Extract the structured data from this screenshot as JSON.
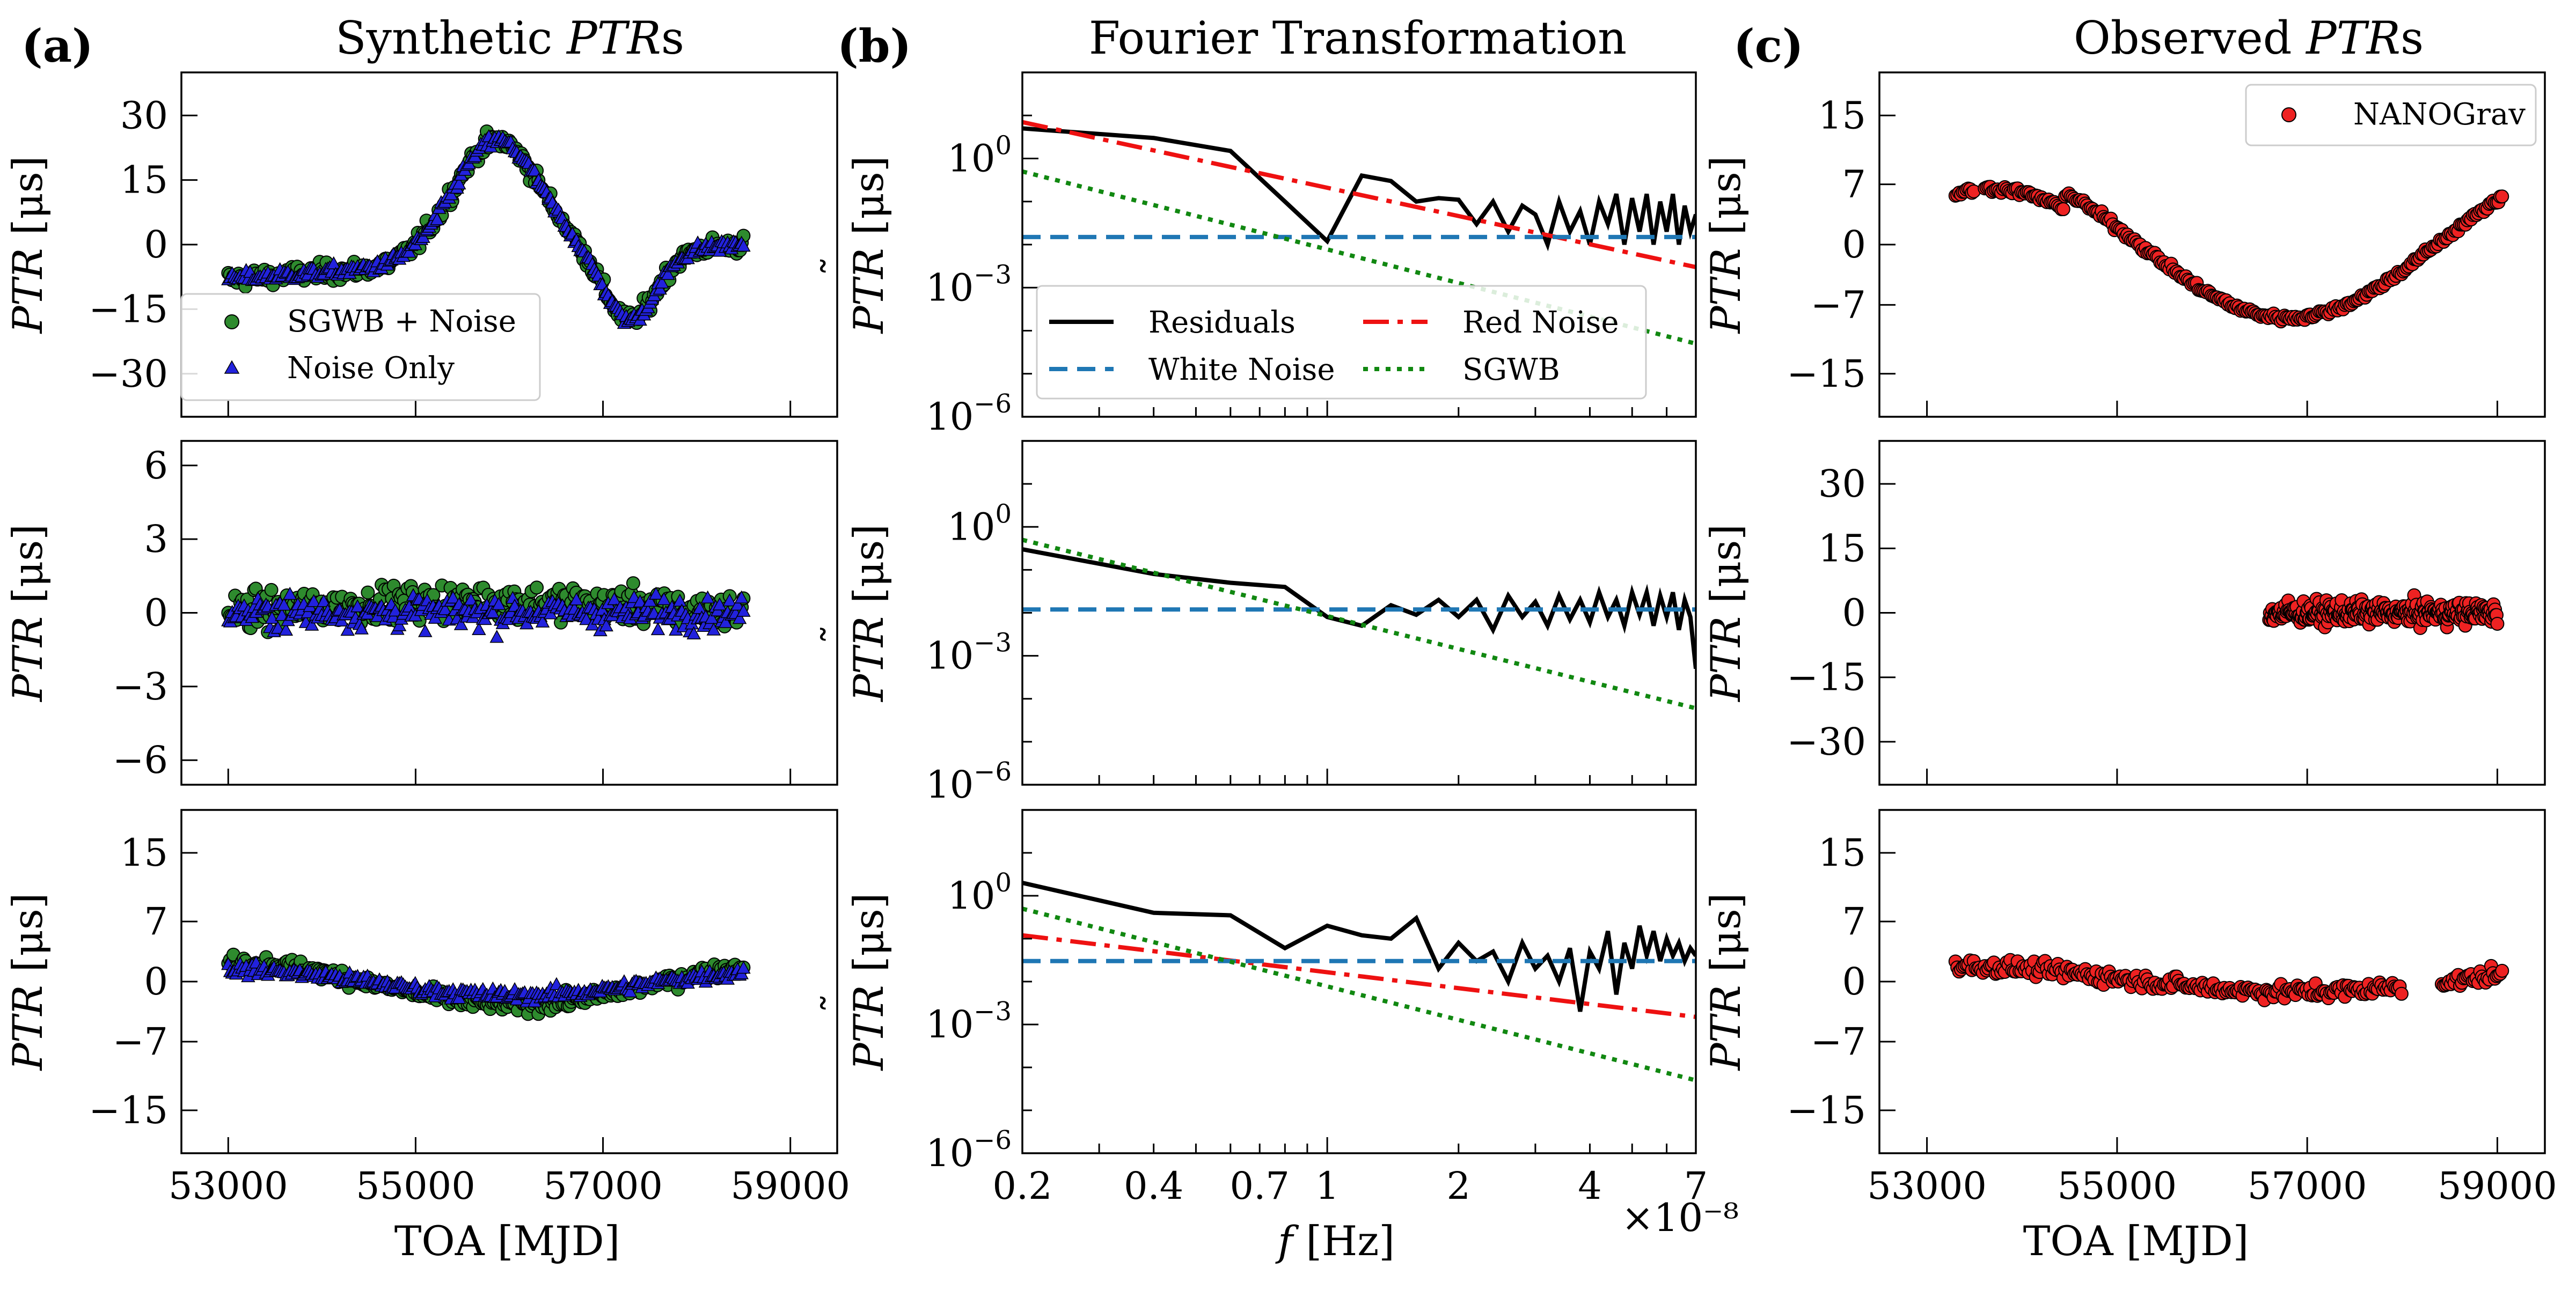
{
  "columns": [
    {
      "letter": "(a)",
      "title_pre": "Synthetic ",
      "title_math": "PTR",
      "title_post": "s"
    },
    {
      "letter": "(b)",
      "title_pre": "Fourier Transformation",
      "title_math": "",
      "title_post": ""
    },
    {
      "letter": "(c)",
      "title_pre": "Observed ",
      "title_math": "PTR",
      "title_post": "s"
    }
  ],
  "ylabels": {
    "time_math": "PTR",
    "time_unit": " [μs]",
    "freq_math": "PTR",
    "freq_unit": " [μs]"
  },
  "xlabels": {
    "toa": "TOA [MJD]",
    "freq_math": "f",
    "freq_unit": " [Hz]",
    "freq_offset": "×10⁻⁸"
  },
  "legends": {
    "synthetic": [
      "SGWB  +  Noise",
      "Noise Only"
    ],
    "fourier": [
      "Residuals",
      "Red Noise",
      "White Noise",
      "SGWB"
    ],
    "observed": [
      "NANOGrav"
    ]
  },
  "colors": {
    "sgwb_noise": "#2e8b2e",
    "noise_only": "#2222dd",
    "residuals": "#000000",
    "white_noise": "#1f77b4",
    "red_noise": "#ee1111",
    "sgwb": "#118811",
    "nanograv": "#ee2222"
  },
  "chart_data": [
    {
      "id": "a1",
      "type": "scatter",
      "title": "Synthetic PTRs",
      "xlim": [
        52500,
        59500
      ],
      "ylim": [
        -40,
        40
      ],
      "xticks": [
        53000,
        55000,
        57000,
        59000
      ],
      "yticks": [
        30,
        15,
        0,
        -15,
        -30
      ],
      "xlabel": "",
      "ylabel": "PTR [μs]",
      "legend_placement": "lower-left",
      "series": [
        {
          "name": "SGWB + Noise",
          "marker": "circle",
          "curve": "gwb",
          "amp": 1,
          "noise": 1.5,
          "x_range": [
            53000,
            58500
          ]
        },
        {
          "name": "Noise Only",
          "marker": "triangle",
          "curve": "gwb",
          "amp": 1,
          "noise": 1.0,
          "x_range": [
            53000,
            58500
          ]
        }
      ]
    },
    {
      "id": "a2",
      "type": "scatter",
      "xlim": [
        52500,
        59500
      ],
      "ylim": [
        -7,
        7
      ],
      "xticks": [
        53000,
        55000,
        57000,
        59000
      ],
      "yticks": [
        6,
        3,
        0,
        -3,
        -6
      ],
      "xlabel": "",
      "ylabel": "PTR [μs]",
      "series": [
        {
          "name": "SGWB + Noise",
          "marker": "circle",
          "curve": "bump",
          "amp": 0.6,
          "noise": 0.5,
          "x_range": [
            53000,
            58500
          ]
        },
        {
          "name": "Noise Only",
          "marker": "triangle",
          "curve": "flat",
          "amp": 0,
          "noise": 0.45,
          "x_range": [
            53000,
            58500
          ]
        }
      ]
    },
    {
      "id": "a3",
      "type": "scatter",
      "xlim": [
        52500,
        59500
      ],
      "ylim": [
        -20,
        20
      ],
      "xticks": [
        53000,
        55000,
        57000,
        59000
      ],
      "yticks": [
        15,
        7,
        0,
        -7,
        -15
      ],
      "xlabel": "TOA [MJD]",
      "ylabel": "PTR [μs]",
      "series": [
        {
          "name": "SGWB + Noise",
          "marker": "circle",
          "curve": "wave3",
          "amp": 1,
          "noise": 0.6,
          "x_range": [
            53000,
            58500
          ]
        },
        {
          "name": "Noise Only",
          "marker": "triangle",
          "curve": "wave3",
          "amp": 0.6,
          "noise": 0.5,
          "x_range": [
            53000,
            58500
          ]
        }
      ]
    },
    {
      "id": "b1",
      "type": "line",
      "title": "Fourier Transformation",
      "xscale": "log",
      "yscale": "log",
      "xlim": [
        0.2,
        7
      ],
      "ylim_exp": [
        -6,
        2
      ],
      "yticks_exp": [
        0,
        -3,
        -6
      ],
      "xlabel": "",
      "ylabel": "PTR~ [μs]",
      "legend_placement": "lower-left",
      "series": [
        {
          "name": "Residuals",
          "x": [
            0.2,
            0.4,
            0.6,
            0.8,
            1.0,
            1.2,
            1.4,
            1.6,
            1.8,
            2.0,
            2.2,
            2.4,
            2.6,
            2.8,
            3.0,
            3.2,
            3.4,
            3.6,
            3.8,
            4.0,
            4.2,
            4.4,
            4.6,
            4.8,
            5.0,
            5.2,
            5.4,
            5.6,
            5.8,
            6.0,
            6.2,
            6.4,
            6.6,
            6.8,
            7.0
          ],
          "y": [
            5.0,
            3.0,
            1.5,
            0.1,
            0.012,
            0.4,
            0.3,
            0.1,
            0.12,
            0.11,
            0.03,
            0.1,
            0.02,
            0.08,
            0.05,
            0.01,
            0.1,
            0.02,
            0.06,
            0.01,
            0.1,
            0.03,
            0.15,
            0.01,
            0.12,
            0.02,
            0.15,
            0.01,
            0.1,
            0.02,
            0.15,
            0.01,
            0.08,
            0.02,
            0.05
          ]
        },
        {
          "name": "Red Noise",
          "x": [
            0.2,
            7.0
          ],
          "y": [
            7.0,
            0.003
          ]
        },
        {
          "name": "White Noise",
          "x": [
            0.2,
            7.0
          ],
          "y": [
            0.015,
            0.015
          ]
        },
        {
          "name": "SGWB",
          "x": [
            0.2,
            7.0
          ],
          "y": [
            0.5,
            5e-05
          ]
        }
      ]
    },
    {
      "id": "b2",
      "type": "line",
      "xscale": "log",
      "yscale": "log",
      "xlim": [
        0.2,
        7
      ],
      "ylim_exp": [
        -6,
        2
      ],
      "yticks_exp": [
        0,
        -3,
        -6
      ],
      "xlabel": "",
      "ylabel": "PTR~ [μs]",
      "series": [
        {
          "name": "Residuals",
          "x": [
            0.2,
            0.4,
            0.6,
            0.8,
            1.0,
            1.2,
            1.4,
            1.6,
            1.8,
            2.0,
            2.2,
            2.4,
            2.6,
            2.8,
            3.0,
            3.2,
            3.4,
            3.6,
            3.8,
            4.0,
            4.2,
            4.4,
            4.6,
            4.8,
            5.0,
            5.2,
            5.4,
            5.6,
            5.8,
            6.0,
            6.2,
            6.4,
            6.6,
            6.8,
            7.0
          ],
          "y": [
            0.3,
            0.08,
            0.05,
            0.04,
            0.008,
            0.005,
            0.015,
            0.009,
            0.02,
            0.008,
            0.02,
            0.004,
            0.025,
            0.008,
            0.018,
            0.005,
            0.025,
            0.007,
            0.02,
            0.006,
            0.03,
            0.008,
            0.02,
            0.005,
            0.03,
            0.009,
            0.03,
            0.005,
            0.025,
            0.008,
            0.03,
            0.004,
            0.02,
            0.008,
            0.0005
          ]
        },
        {
          "name": "White Noise",
          "x": [
            0.2,
            7.0
          ],
          "y": [
            0.012,
            0.012
          ]
        },
        {
          "name": "SGWB",
          "x": [
            0.2,
            7.0
          ],
          "y": [
            0.5,
            6e-05
          ]
        }
      ]
    },
    {
      "id": "b3",
      "type": "line",
      "xscale": "log",
      "yscale": "log",
      "xlim": [
        0.2,
        7
      ],
      "ylim_exp": [
        -6,
        2
      ],
      "yticks_exp": [
        0,
        -3,
        -6
      ],
      "xticks": [
        0.2,
        0.4,
        0.7,
        1,
        2,
        4,
        7
      ],
      "xtick_labels": [
        "0.2",
        "0.4",
        "0.7",
        "1",
        "2",
        "4",
        "7"
      ],
      "xlabel": "f [Hz]",
      "ylabel": "PTR~ [μs]",
      "series": [
        {
          "name": "Residuals",
          "x": [
            0.2,
            0.4,
            0.6,
            0.8,
            1.0,
            1.2,
            1.4,
            1.6,
            1.8,
            2.0,
            2.2,
            2.4,
            2.6,
            2.8,
            3.0,
            3.2,
            3.4,
            3.6,
            3.8,
            4.0,
            4.2,
            4.4,
            4.6,
            4.8,
            5.0,
            5.2,
            5.4,
            5.6,
            5.8,
            6.0,
            6.2,
            6.4,
            6.6,
            6.8,
            7.0
          ],
          "y": [
            2.0,
            0.4,
            0.35,
            0.06,
            0.2,
            0.12,
            0.1,
            0.3,
            0.02,
            0.08,
            0.03,
            0.05,
            0.01,
            0.08,
            0.02,
            0.04,
            0.01,
            0.06,
            0.002,
            0.05,
            0.02,
            0.15,
            0.005,
            0.08,
            0.02,
            0.2,
            0.04,
            0.15,
            0.03,
            0.1,
            0.04,
            0.08,
            0.03,
            0.06,
            0.04
          ]
        },
        {
          "name": "Red Noise",
          "x": [
            0.2,
            7.0
          ],
          "y": [
            0.12,
            0.0015
          ]
        },
        {
          "name": "White Noise",
          "x": [
            0.2,
            7.0
          ],
          "y": [
            0.03,
            0.03
          ]
        },
        {
          "name": "SGWB",
          "x": [
            0.2,
            7.0
          ],
          "y": [
            0.5,
            5e-05
          ]
        }
      ]
    },
    {
      "id": "c1",
      "type": "scatter",
      "title": "Observed PTRs",
      "xlim": [
        52500,
        59500
      ],
      "ylim": [
        -20,
        20
      ],
      "xticks": [
        53000,
        55000,
        57000,
        59000
      ],
      "yticks": [
        15,
        7,
        0,
        -7,
        -15
      ],
      "xlabel": "",
      "ylabel": "PTR [μs]",
      "legend_placement": "upper-right",
      "series": [
        {
          "name": "NANOGrav",
          "marker": "circle",
          "curve": "obs1",
          "noise": 0.3,
          "x_range": [
            53300,
            59050
          ]
        }
      ]
    },
    {
      "id": "c2",
      "type": "scatter",
      "xlim": [
        52500,
        59500
      ],
      "ylim": [
        -40,
        40
      ],
      "xticks": [
        53000,
        55000,
        57000,
        59000
      ],
      "yticks": [
        30,
        15,
        0,
        -15,
        -30
      ],
      "xlabel": "",
      "ylabel": "PTR [μs]",
      "series": [
        {
          "name": "NANOGrav",
          "marker": "circle",
          "curve": "flat",
          "noise": 1.8,
          "x_range": [
            56600,
            59000
          ]
        }
      ]
    },
    {
      "id": "c3",
      "type": "scatter",
      "xlim": [
        52500,
        59500
      ],
      "ylim": [
        -20,
        20
      ],
      "xticks": [
        53000,
        55000,
        57000,
        59000
      ],
      "yticks": [
        15,
        7,
        0,
        -7,
        -15
      ],
      "xlabel": "TOA [MJD]",
      "ylabel": "PTR [μs]",
      "series": [
        {
          "name": "NANOGrav",
          "marker": "circle",
          "curve": "obs3",
          "noise": 0.6,
          "x_range": [
            53300,
            59050
          ]
        }
      ]
    }
  ]
}
